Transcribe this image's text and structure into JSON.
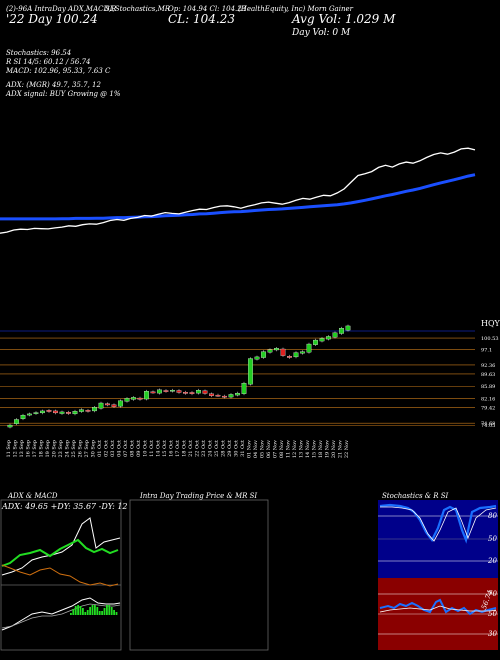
{
  "header": {
    "code_line": "(2)-96A IntraDay ADX,MACD,R",
    "code_line2": "SI,Stochastics,MR",
    "open_label": "Op: 104.94 Cl: 104.23",
    "title": "(HealthEquity, Inc) Morn Gainer",
    "ohlc_line": "'22 Day  100.24",
    "cl_big": "CL: 104.23",
    "avg_vol": "Avg Vol: 1.029 M",
    "day_vol": "Day Vol: 0  M",
    "stochastics": "Stochastics: 96.54",
    "rsi": "R                    SI 14/5: 60.12 / 56.74",
    "macd": "MACD: 102.96, 95.33, 7.63 C",
    "adx": "ADX:                           (MGR) 49.7,  35.7,  12",
    "adx_signal": "ADX  signal:                           BUY Growing @ 1%"
  },
  "colors": {
    "price_line": "#ffffff",
    "ma_line": "#1a4fff",
    "candle_up": "#22cc22",
    "candle_down": "#e02020",
    "level_line": "#c87a1a"
  },
  "chart_data": [
    {
      "type": "line",
      "x": [
        1,
        2,
        3,
        4,
        5,
        6,
        7,
        8,
        9,
        10,
        11,
        12,
        13,
        14,
        15,
        16,
        17,
        18,
        19,
        20,
        21,
        22,
        23,
        24,
        25,
        26,
        27,
        28,
        29,
        30,
        31,
        32,
        33,
        34,
        35,
        36,
        37,
        38,
        39,
        40,
        41,
        42,
        43,
        44,
        45,
        46,
        47,
        48,
        49,
        50,
        51,
        52,
        53,
        54,
        55,
        56,
        57,
        58,
        59,
        60,
        61,
        62,
        63,
        64,
        65,
        66,
        67,
        68,
        69,
        70
      ],
      "series": [
        {
          "values": [
            72.6,
            73.0,
            73.8,
            74.1,
            74.0,
            74.4,
            74.3,
            74.2,
            74.6,
            74.9,
            75.4,
            75.2,
            75.8,
            76.1,
            76.0,
            76.6,
            77.4,
            77.8,
            77.5,
            78.2,
            78.6,
            79.3,
            79.1,
            79.8,
            80.4,
            80.1,
            79.9,
            80.6,
            81.2,
            81.7,
            81.6,
            82.3,
            82.9,
            83.0,
            82.6,
            82.1,
            82.8,
            83.4,
            84.1,
            84.4,
            84.0,
            83.6,
            84.2,
            85.1,
            85.8,
            85.5,
            86.3,
            87.0,
            86.8,
            87.9,
            89.4,
            92.0,
            94.5,
            95.2,
            96.0,
            97.6,
            98.4,
            97.7,
            98.9,
            99.6,
            99.2,
            100.1,
            101.4,
            102.5,
            103.1,
            102.6,
            103.4,
            104.6,
            104.9,
            104.23
          ]
        },
        {
          "values": [
            78.0,
            78.0,
            78.0,
            78.0,
            78.0,
            78.0,
            78.0,
            78.0,
            78.0,
            78.1,
            78.1,
            78.2,
            78.2,
            78.2,
            78.3,
            78.3,
            78.4,
            78.5,
            78.5,
            78.6,
            78.7,
            78.8,
            78.9,
            79.0,
            79.2,
            79.3,
            79.4,
            79.6,
            79.7,
            79.9,
            80.0,
            80.2,
            80.4,
            80.6,
            80.7,
            80.8,
            81.0,
            81.2,
            81.4,
            81.6,
            81.7,
            81.8,
            82.0,
            82.2,
            82.4,
            82.6,
            82.8,
            83.0,
            83.2,
            83.4,
            83.7,
            84.1,
            84.6,
            85.1,
            85.6,
            86.2,
            86.8,
            87.3,
            87.9,
            88.5,
            89.0,
            89.6,
            90.3,
            91.0,
            91.7,
            92.3,
            92.9,
            93.6,
            94.3,
            94.8
          ]
        }
      ]
    },
    {
      "type": "bar",
      "categories": [
        "11 Sep",
        "12 Sep",
        "13 Sep",
        "16 Sep",
        "17 Sep",
        "18 Sep",
        "19 Sep",
        "20 Sep",
        "23 Sep",
        "24 Sep",
        "25 Sep",
        "26 Sep",
        "27 Sep",
        "30 Sep",
        "01 Oct",
        "02 Oct",
        "03 Oct",
        "04 Oct",
        "07 Oct",
        "08 Oct",
        "09 Oct",
        "10 Oct",
        "11 Oct",
        "14 Oct",
        "15 Oct",
        "16 Oct",
        "17 Oct",
        "18 Oct",
        "21 Oct",
        "22 Oct",
        "23 Oct",
        "24 Oct",
        "25 Oct",
        "28 Oct",
        "29 Oct",
        "30 Oct",
        "31 Oct",
        "01 Nov",
        "04 Nov",
        "05 Nov",
        "06 Nov",
        "07 Nov",
        "08 Nov",
        "11 Nov",
        "12 Nov",
        "13 Nov",
        "14 Nov",
        "15 Nov",
        "18 Nov",
        "19 Nov",
        "20 Nov",
        "21 Nov",
        "22 Nov"
      ],
      "open": [
        73.5,
        74.5,
        76.0,
        77.2,
        77.6,
        77.8,
        78.6,
        78.4,
        77.6,
        78.0,
        77.5,
        78.2,
        78.6,
        78.4,
        79.2,
        80.6,
        80.3,
        79.8,
        81.3,
        81.9,
        82.3,
        82.0,
        84.2,
        83.8,
        84.6,
        84.4,
        84.6,
        84.1,
        84.0,
        83.8,
        84.5,
        83.6,
        83.2,
        82.9,
        82.6,
        83.2,
        83.6,
        86.5,
        94.1,
        94.6,
        96.2,
        96.9,
        97.2,
        95.0,
        94.8,
        95.9,
        96.2,
        98.5,
        99.6,
        100.2,
        100.8,
        101.9,
        102.9
      ],
      "close": [
        74.1,
        75.8,
        77.1,
        77.5,
        77.9,
        78.4,
        78.2,
        77.8,
        78.1,
        77.6,
        78.3,
        78.8,
        78.3,
        79.5,
        80.8,
        80.2,
        79.7,
        81.5,
        82.2,
        82.5,
        81.9,
        84.4,
        84.0,
        84.8,
        84.3,
        84.7,
        84.0,
        83.7,
        83.6,
        84.7,
        83.7,
        83.0,
        83.1,
        82.6,
        83.4,
        83.8,
        86.8,
        94.3,
        94.8,
        96.4,
        97.0,
        97.4,
        95.2,
        94.6,
        96.1,
        96.4,
        98.7,
        99.9,
        100.4,
        101.0,
        102.1,
        103.5,
        104.2
      ],
      "level_labels": [
        "100.53",
        "97.1",
        "92.36",
        "89.63",
        "85.89",
        "82.16",
        "79.42",
        "74.68",
        "74.05"
      ],
      "top_label": "HQY"
    }
  ],
  "panels": {
    "adx_title": "ADX  & MACD",
    "adx_readout": "ADX: 49.65 +DY: 35.67 -DY: 12",
    "intraday_title": "Intra  Day Trading Price  & MR                    SI",
    "stoch_title": "Stochastics & R                    SI",
    "stoch_ticks": [
      "80",
      "50",
      "20"
    ],
    "rsi_ticks": [
      "70",
      "50",
      "30"
    ],
    "rsi_readout": "56.74"
  }
}
